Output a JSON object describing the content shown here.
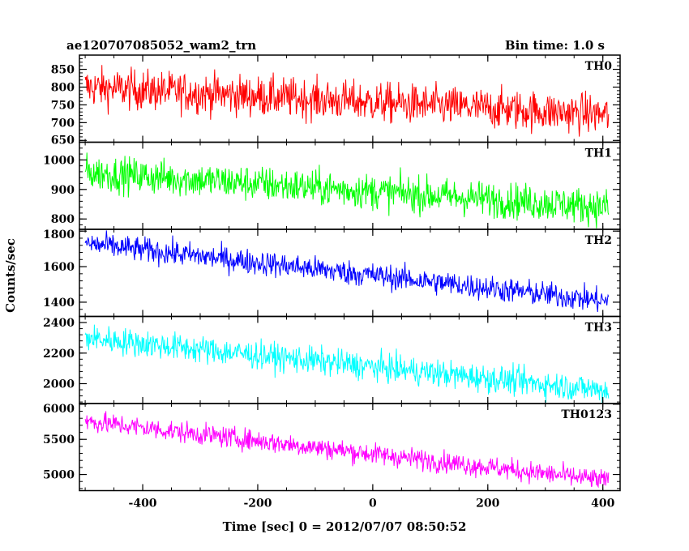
{
  "header": {
    "title": "ae120707085052_wam2_trn",
    "bin_time": "Bin time: 1.0 s"
  },
  "chart_data": {
    "type": "line",
    "title": "ae120707085052_wam2_trn",
    "xlabel": "Time [sec] 0 = 2012/07/07 08:50:52",
    "ylabel": "Counts/sec",
    "xlim": [
      -510,
      430
    ],
    "x_ticks": [
      -400,
      -200,
      0,
      200,
      400
    ],
    "x_range_data": [
      -500,
      410
    ],
    "grid": false,
    "legend": "none",
    "panels": [
      {
        "name": "TH0",
        "color": "#ff0000",
        "ylim": [
          645,
          890
        ],
        "y_ticks": [
          650,
          700,
          750,
          800,
          850
        ],
        "trend_start": 800,
        "trend_end": 722,
        "noise": 28
      },
      {
        "name": "TH1",
        "color": "#00ff00",
        "ylim": [
          765,
          1060
        ],
        "y_ticks": [
          800,
          900,
          1000
        ],
        "trend_start": 958,
        "trend_end": 840,
        "noise": 30
      },
      {
        "name": "TH2",
        "color": "#0000ff",
        "ylim": [
          1320,
          1810
        ],
        "y_ticks": [
          1400,
          1600,
          1800
        ],
        "trend_start": 1730,
        "trend_end": 1405,
        "noise": 35
      },
      {
        "name": "TH3",
        "color": "#00ffff",
        "ylim": [
          1870,
          2440
        ],
        "y_ticks": [
          2000,
          2200,
          2400
        ],
        "trend_start": 2300,
        "trend_end": 1955,
        "noise": 45
      },
      {
        "name": "TH0123",
        "color": "#ff00ff",
        "ylim": [
          4770,
          6010
        ],
        "y_ticks": [
          5000,
          5500,
          6000
        ],
        "trend_start": 5760,
        "trend_end": 4910,
        "noise": 75
      }
    ]
  }
}
